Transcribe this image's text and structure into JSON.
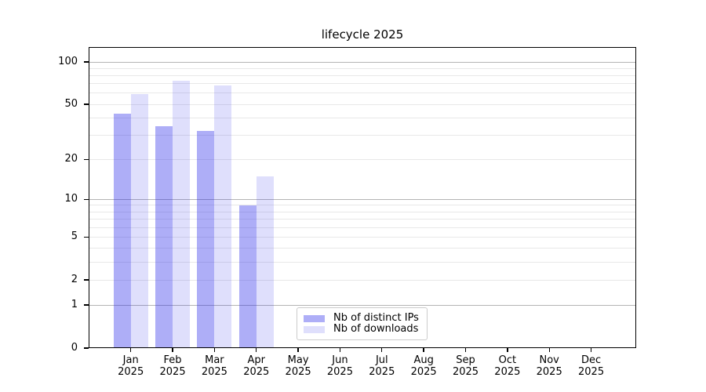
{
  "chart_data": {
    "type": "bar",
    "title": "lifecycle 2025",
    "categories": [
      [
        "Jan",
        "2025"
      ],
      [
        "Feb",
        "2025"
      ],
      [
        "Mar",
        "2025"
      ],
      [
        "Apr",
        "2025"
      ],
      [
        "May",
        "2025"
      ],
      [
        "Jun",
        "2025"
      ],
      [
        "Jul",
        "2025"
      ],
      [
        "Aug",
        "2025"
      ],
      [
        "Sep",
        "2025"
      ],
      [
        "Oct",
        "2025"
      ],
      [
        "Nov",
        "2025"
      ],
      [
        "Dec",
        "2025"
      ]
    ],
    "series": [
      {
        "name": "Nb of distinct IPs",
        "color": "rgba(43,43,235,0.38)",
        "values": [
          43,
          35,
          32,
          9,
          0,
          0,
          0,
          0,
          0,
          0,
          0,
          0
        ]
      },
      {
        "name": "Nb of downloads",
        "color": "rgba(43,43,235,0.15)",
        "values": [
          59,
          74,
          68,
          15,
          0,
          0,
          0,
          0,
          0,
          0,
          0,
          0
        ]
      }
    ],
    "xlabel": "",
    "ylabel": "",
    "yscale": "log1p",
    "ylim": [
      0,
      127
    ],
    "yticks": [
      0,
      1,
      2,
      5,
      10,
      20,
      50,
      100
    ],
    "grid": {
      "on": true,
      "major": [
        1,
        10,
        100
      ],
      "minor": [
        2,
        3,
        4,
        5,
        6,
        7,
        8,
        9,
        20,
        30,
        40,
        50,
        60,
        70,
        80,
        90
      ],
      "major_color": "#b4b4b4",
      "minor_color": "#e8e8e8"
    },
    "legend_position": "lower center"
  }
}
